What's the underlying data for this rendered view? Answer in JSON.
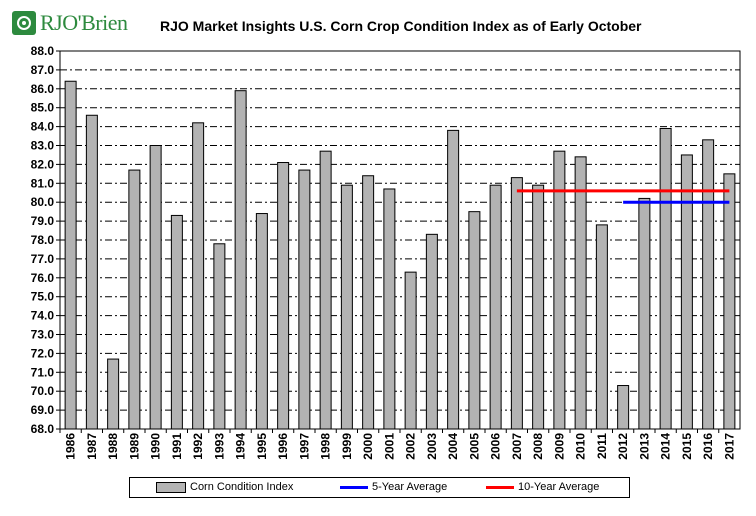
{
  "logo": {
    "text": "RJO'Brien",
    "icon": "rjo-logo-icon"
  },
  "chart_data": {
    "type": "bar",
    "title": "RJO Market Insights U.S. Corn Crop Condition Index as of Early October",
    "xlabel": "",
    "ylabel": "",
    "ylim": [
      68.0,
      88.0
    ],
    "ytick_step": 1.0,
    "grid": "horizontal-dash-dot",
    "legend_placement": "bottom",
    "categories": [
      "1986",
      "1987",
      "1988",
      "1989",
      "1990",
      "1991",
      "1992",
      "1993",
      "1994",
      "1995",
      "1996",
      "1997",
      "1998",
      "1999",
      "2000",
      "2001",
      "2002",
      "2003",
      "2004",
      "2005",
      "2006",
      "2007",
      "2008",
      "2009",
      "2010",
      "2011",
      "2012",
      "2013",
      "2014",
      "2015",
      "2016",
      "2017"
    ],
    "series": [
      {
        "name": "Corn Condition Index",
        "type": "bar",
        "color": "#b3b3b3",
        "values": [
          86.4,
          84.6,
          71.7,
          81.7,
          83.0,
          79.3,
          84.2,
          77.8,
          85.9,
          79.4,
          82.1,
          81.7,
          82.7,
          80.9,
          81.4,
          80.7,
          76.3,
          78.3,
          83.8,
          79.5,
          80.9,
          81.3,
          80.9,
          82.7,
          82.4,
          78.8,
          70.3,
          80.2,
          83.9,
          82.5,
          83.3,
          81.5
        ]
      },
      {
        "name": "5-Year Average",
        "type": "line",
        "color": "#0000ff",
        "from": "2012",
        "to": "2017",
        "value": 80.0
      },
      {
        "name": "10-Year Average",
        "type": "line",
        "color": "#ff0000",
        "from": "2007",
        "to": "2017",
        "value": 80.6
      }
    ]
  }
}
